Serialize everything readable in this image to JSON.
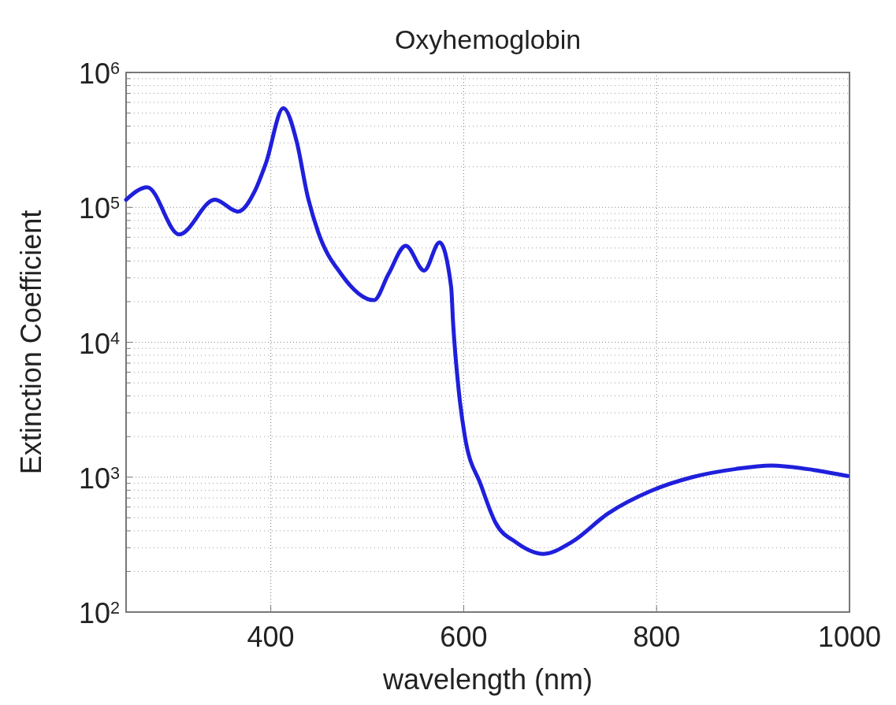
{
  "chart_data": {
    "type": "line",
    "title": "Oxyhemoglobin",
    "xlabel": "wavelength (nm)",
    "ylabel": "Extinction Coefficient",
    "x": [
      250,
      272,
      305,
      342,
      366,
      383,
      395,
      413,
      427,
      438,
      449,
      473,
      507,
      522,
      540,
      559,
      575,
      587,
      589,
      595,
      601,
      618,
      633,
      654,
      683,
      712,
      750,
      794,
      837,
      882,
      919,
      963,
      998
    ],
    "series": [
      {
        "color": "#1f1fdc",
        "values": [
          114000,
          141000,
          63000,
          114000,
          93000,
          130000,
          213000,
          545000,
          305000,
          123000,
          66000,
          32000,
          20500,
          32000,
          52000,
          34000,
          55000,
          25700,
          14000,
          4300,
          2050,
          870,
          460,
          330,
          270,
          330,
          540,
          790,
          1000,
          1150,
          1220,
          1130,
          1020
        ]
      }
    ],
    "xlim": [
      250,
      1000
    ],
    "xticks": [
      400,
      600,
      800,
      1000
    ],
    "ylim": [
      100,
      1000000
    ],
    "yticks": [
      {
        "value": 100,
        "label": "10$^{2}$"
      },
      {
        "value": 1000,
        "label": "10$^{3}$"
      },
      {
        "value": 10000,
        "label": "10$^{4}$"
      },
      {
        "value": 100000,
        "label": "10$^{5}$"
      },
      {
        "value": 1000000,
        "label": "10$^{6}$"
      }
    ],
    "log": "y",
    "grid": true,
    "line_style": "solid",
    "marker": "none"
  }
}
